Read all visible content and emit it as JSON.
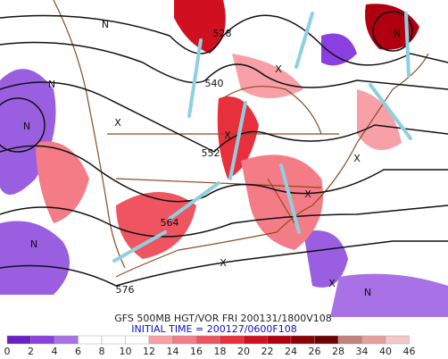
{
  "map": {
    "contour_labels": [
      "528",
      "540",
      "552",
      "564",
      "576"
    ],
    "markers": [
      "N",
      "N",
      "N",
      "N",
      "N",
      "X",
      "X",
      "X",
      "X",
      "X",
      "X",
      "N",
      "X"
    ],
    "caption": "GFS 500MB HGT/VOR FRI 200131/1800V108",
    "initial_time": "INITIAL TIME = 200127/0600F108",
    "colorbar": {
      "labels": [
        "0",
        "2",
        "4",
        "6",
        "8",
        "10",
        "12",
        "14",
        "16",
        "18",
        "20",
        "22",
        "24",
        "26",
        "28",
        "34",
        "40",
        "46"
      ],
      "colors": [
        "#6a1fc4",
        "#8a3fe0",
        "#a872e6",
        "#ffffff",
        "#ffffff",
        "#ffffff",
        "#f7a0a8",
        "#f47c86",
        "#ef5560",
        "#e8303c",
        "#d01020",
        "#b00010",
        "#8c0008",
        "#6c0005",
        "#c08080",
        "#e4a0a0",
        "#f4c8c8"
      ]
    }
  }
}
